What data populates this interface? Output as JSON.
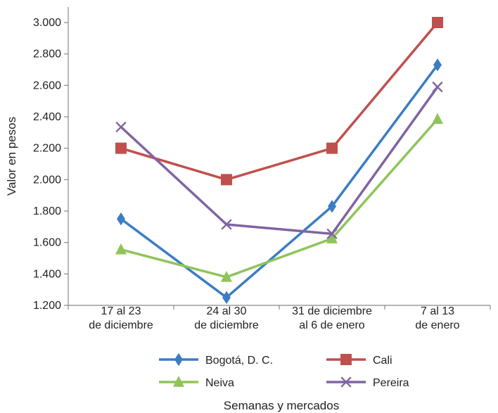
{
  "chart_data": {
    "type": "line",
    "title": "",
    "xlabel": "Semanas y mercados",
    "ylabel": "Valor en pesos",
    "ylim": [
      1200,
      3000
    ],
    "y_ticks": [
      "1.200",
      "1.400",
      "1.600",
      "1.800",
      "2.000",
      "2.200",
      "2.400",
      "2.600",
      "2.800",
      "3.000"
    ],
    "y_tick_values": [
      1200,
      1400,
      1600,
      1800,
      2000,
      2200,
      2400,
      2600,
      2800,
      3000
    ],
    "categories": [
      [
        "17 al 23",
        "de diciembre"
      ],
      [
        "24 al 30",
        "de diciembre"
      ],
      [
        "31 de diciembre",
        "al 6 de enero"
      ],
      [
        "7 al 13",
        "de enero"
      ]
    ],
    "grid": false,
    "legend_position": "bottom",
    "series": [
      {
        "name": "Bogotá, D. C.",
        "color": "#3b7dc4",
        "marker": "diamond",
        "values": [
          1750,
          1250,
          1830,
          2730
        ]
      },
      {
        "name": "Cali",
        "color": "#c0504d",
        "marker": "square",
        "values": [
          2200,
          2000,
          2200,
          3000
        ]
      },
      {
        "name": "Neiva",
        "color": "#8fc45a",
        "marker": "triangle",
        "values": [
          1555,
          1380,
          1625,
          2385
        ]
      },
      {
        "name": "Pereira",
        "color": "#8064a2",
        "marker": "x",
        "values": [
          2335,
          1715,
          1655,
          2590
        ]
      }
    ]
  }
}
